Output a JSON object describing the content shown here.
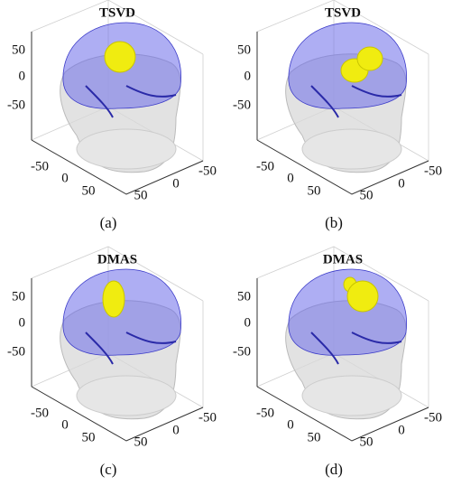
{
  "figure": {
    "panels": [
      {
        "title": "TSVD",
        "caption": "(a)",
        "z_ticks": [
          50,
          0,
          -50
        ],
        "x_ticks": [
          -50,
          0,
          50
        ],
        "y_ticks": [
          50,
          0,
          -50
        ]
      },
      {
        "title": "TSVD",
        "caption": "(b)",
        "z_ticks": [
          50,
          0,
          -50
        ],
        "x_ticks": [
          -50,
          0,
          50
        ],
        "y_ticks": [
          50,
          0,
          -50
        ]
      },
      {
        "title": "DMAS",
        "caption": "(c)",
        "z_ticks": [
          50,
          0,
          -50
        ],
        "x_ticks": [
          -50,
          0,
          50
        ],
        "y_ticks": [
          50,
          0,
          -50
        ]
      },
      {
        "title": "DMAS",
        "caption": "(d)",
        "z_ticks": [
          50,
          0,
          -50
        ],
        "x_ticks": [
          -50,
          0,
          50
        ],
        "y_ticks": [
          50,
          0,
          -50
        ]
      }
    ]
  }
}
